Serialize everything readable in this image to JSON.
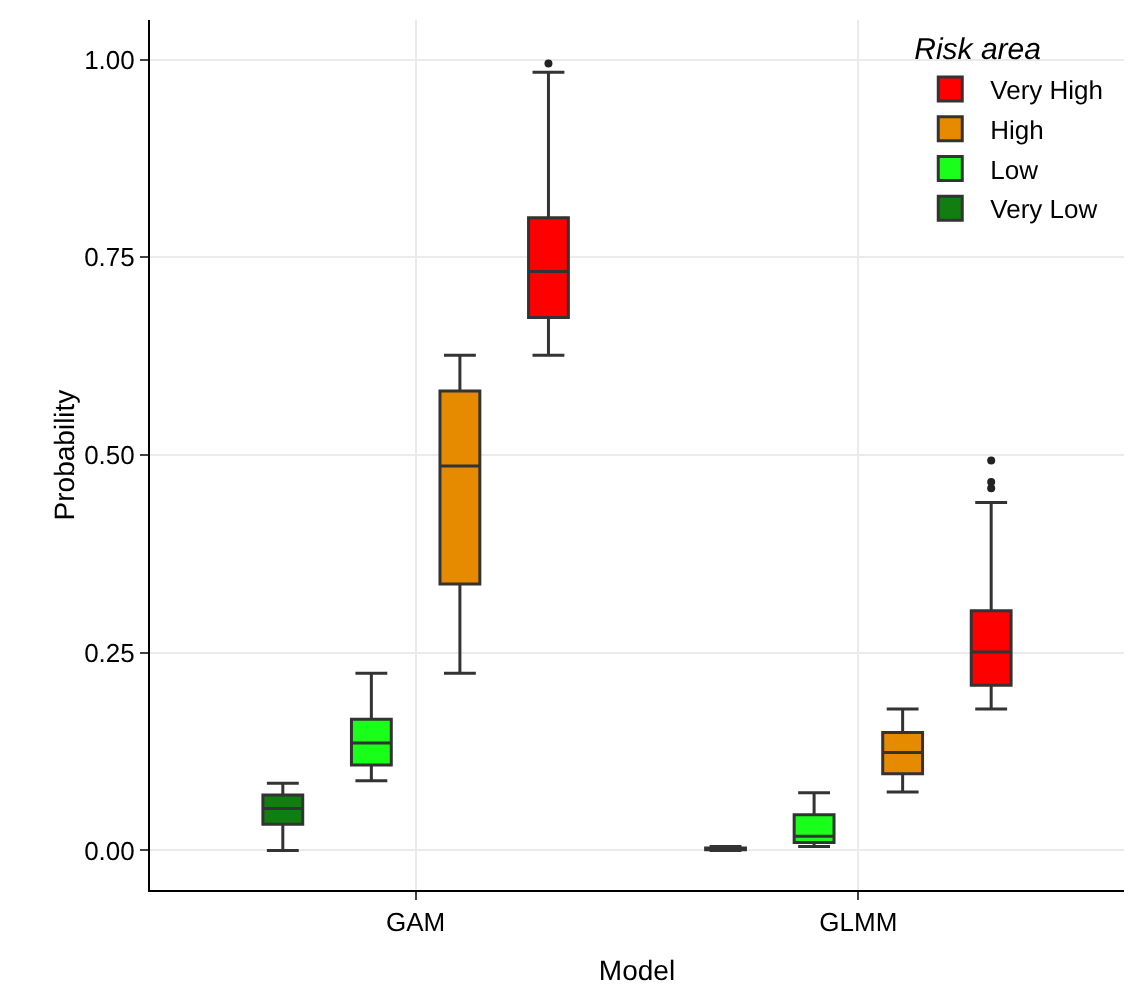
{
  "chart_data": {
    "type": "box",
    "xlabel": "Model",
    "ylabel": "Probability",
    "legend_title": "Risk area",
    "legend": "top right",
    "grid": true,
    "categories": [
      "GAM",
      "GLMM"
    ],
    "ylim": [
      -0.05,
      1.05
    ],
    "yticks": [
      {
        "value": 0,
        "label": "0.00"
      },
      {
        "value": 0.25,
        "label": "0.25"
      },
      {
        "value": 0.5,
        "label": "0.50"
      },
      {
        "value": 0.75,
        "label": "0.75"
      },
      {
        "value": 1,
        "label": "1.00"
      }
    ],
    "series": [
      {
        "name": "Very Low",
        "color": "#117f0f",
        "boxes": [
          {
            "low": 0,
            "q1": 0.033,
            "median": 0.053,
            "q3": 0.07,
            "high": 0.085
          },
          {
            "low": 0,
            "q1": 0.001,
            "median": 0.002,
            "q3": 0.003,
            "high": 0.005
          }
        ]
      },
      {
        "name": "Low",
        "color": "#1aff1a",
        "boxes": [
          {
            "low": 0.088,
            "q1": 0.108,
            "median": 0.136,
            "q3": 0.166,
            "high": 0.224
          },
          {
            "low": 0.005,
            "q1": 0.01,
            "median": 0.018,
            "q3": 0.045,
            "high": 0.073
          }
        ]
      },
      {
        "name": "High",
        "color": "#e68a00",
        "boxes": [
          {
            "low": 0.224,
            "q1": 0.337,
            "median": 0.486,
            "q3": 0.581,
            "high": 0.626
          },
          {
            "low": 0.074,
            "q1": 0.097,
            "median": 0.124,
            "q3": 0.149,
            "high": 0.179
          }
        ]
      },
      {
        "name": "Very High",
        "color": "#ff0000",
        "boxes": [
          {
            "low": 0.626,
            "q1": 0.674,
            "median": 0.732,
            "q3": 0.8,
            "high": 0.984,
            "outliers": [
              0.995
            ]
          },
          {
            "low": 0.179,
            "q1": 0.209,
            "median": 0.251,
            "q3": 0.303,
            "high": 0.44,
            "outliers": [
              0.458,
              0.466,
              0.493
            ]
          }
        ]
      }
    ]
  }
}
